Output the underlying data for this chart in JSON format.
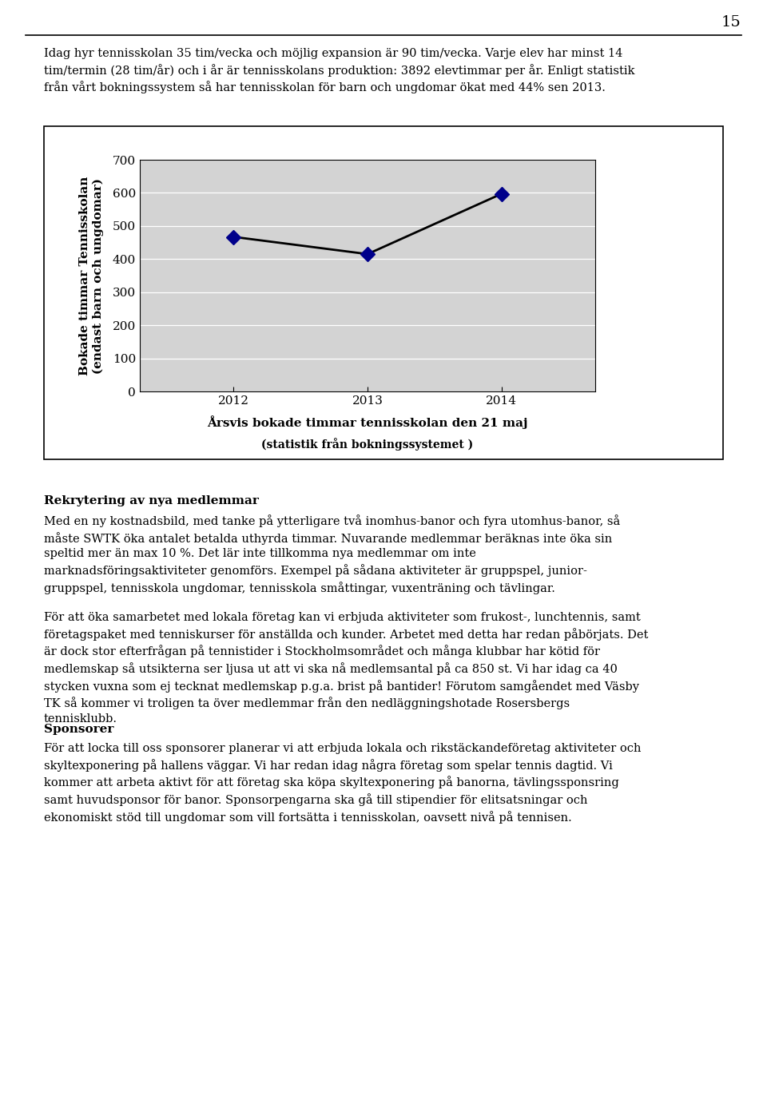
{
  "page_number": "15",
  "para1": "Idag hyr tennisskolan 35 tim/vecka och möjlig expansion är 90 tim/vecka. Varje elev har minst 14\ntim/termin (28 tim/år) och i år är tennisskolans produktion: 3892 elevtimmar per år. Enligt statistik\nfrån vårt bokningssystem så har tennisskolan för barn och ungdomar ökat med 44% sen 2013.",
  "chart": {
    "x": [
      2012,
      2013,
      2014
    ],
    "y": [
      467,
      415,
      597
    ],
    "ylabel_line1": "Bokade timmar Tennisskolan",
    "ylabel_line2": "(endast barn och ungdomar)",
    "xlabel_line1": "Årsvis bokade timmar tennisskolan den 21 maj",
    "xlabel_line2": "(statistik från bokningssystemet )",
    "ylim": [
      0,
      700
    ],
    "yticks": [
      0,
      100,
      200,
      300,
      400,
      500,
      600,
      700
    ],
    "plot_bg_color": "#d3d3d3",
    "line_color": "#000000",
    "marker_color": "#00008B",
    "border_color": "#000000"
  },
  "section_rekrytering": {
    "heading": "Rekrytering av nya medlemmar",
    "para1": "Med en ny kostnadsbild, med tanke på ytterligare två inomhus-banor och fyra utomhus-banor, så\nmåste SWTK öka antalet betalda uthyrda timmar. Nuvarande medlemmar beräknas inte öka sin\nspeltid mer än max 10 %. Det lär inte tillkomma nya medlemmar om inte\nmarknadsföringsaktiviteter genomförs. Exempel på sådana aktiviteter är gruppspel, junior-\ngruppspel, tennisskola ungdomar, tennisskola småttingar, vuxenträning och tävlingar.",
    "para2": "För att öka samarbetet med lokala företag kan vi erbjuda aktiviteter som frukost-, lunchtennis, samt\nföretagspaket med tenniskurser för anställda och kunder. Arbetet med detta har redan påbörjats. Det\när dock stor efterfrågan på tennistider i Stockholmsområdet och många klubbar har kötid för\nmedlemskap så utsikterna ser ljusa ut att vi ska nå medlemsantal på ca 850 st. Vi har idag ca 40\nstycken vuxna som ej tecknat medlemskap p.g.a. brist på bantider! Förutom samgåendet med Väsby\nTK så kommer vi troligen ta över medlemmar från den nedläggningshotade Rosersbergs\ntennisklubb."
  },
  "section_sponsorer": {
    "heading": "Sponsorer",
    "text": "För att locka till oss sponsorer planerar vi att erbjuda lokala och rikstäckandeföretag aktiviteter och\nskyltexponering på hallens väggar. Vi har redan idag några företag som spelar tennis dagtid. Vi\nkommer att arbeta aktivt för att företag ska köpa skyltexponering på banorna, tävlingssponsring\nsamt huvudsponsor för banor. Sponsorpengarna ska gå till stipendier för elitsatsningar och\nekonomiskt stöd till ungdomar som vill fortsätta i tennisskolan, oavsett nivå på tennisen."
  },
  "bg_color": "#ffffff",
  "text_color": "#000000"
}
